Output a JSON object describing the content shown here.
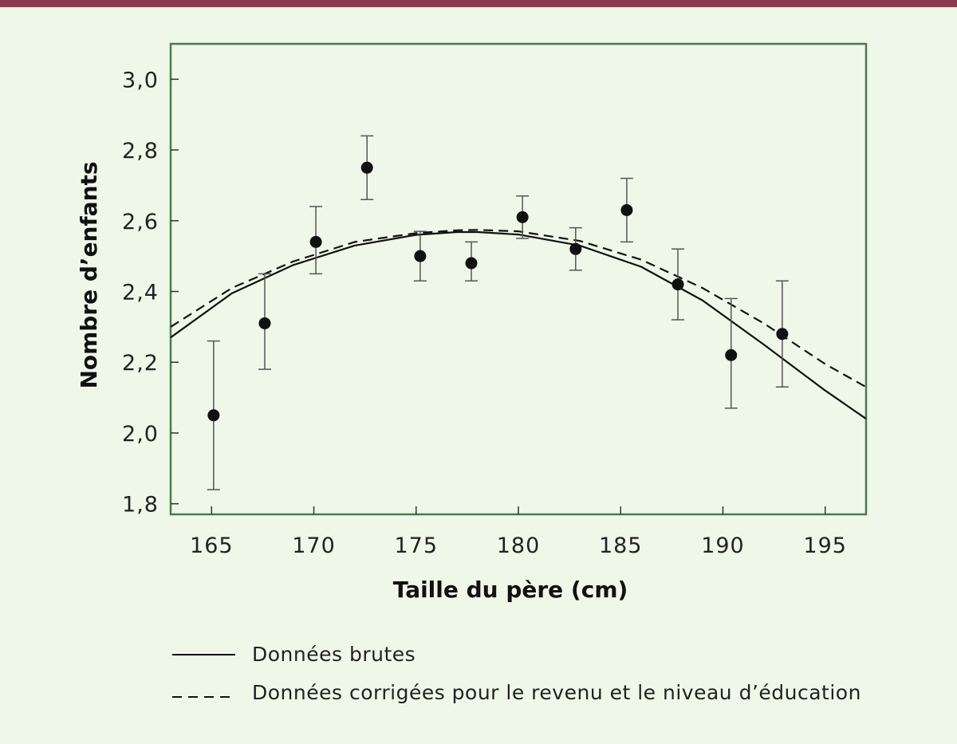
{
  "chart_data": {
    "type": "scatter",
    "xlabel": "Taille du père (cm)",
    "ylabel": "Nombre d’enfants",
    "xlim": [
      163,
      197
    ],
    "ylim": [
      1.77,
      3.1
    ],
    "xticks": [
      165,
      170,
      175,
      180,
      185,
      190,
      195
    ],
    "xtick_labels": [
      "165",
      "170",
      "175",
      "180",
      "185",
      "190",
      "195"
    ],
    "yticks": [
      1.8,
      2.0,
      2.2,
      2.4,
      2.6,
      2.8,
      3.0
    ],
    "ytick_labels": [
      "1,8",
      "2,0",
      "2,2",
      "2,4",
      "2,6",
      "2,8",
      "3,0"
    ],
    "grid": false,
    "colors": {
      "background": "#eff7e9",
      "plot_border": "#4b7a4b",
      "top_bar": "#8a3b4d",
      "marks": "#111111"
    },
    "points": [
      {
        "x": 165.1,
        "y": 2.05,
        "low": 1.84,
        "high": 2.26
      },
      {
        "x": 167.6,
        "y": 2.31,
        "low": 2.18,
        "high": 2.45
      },
      {
        "x": 170.1,
        "y": 2.54,
        "low": 2.45,
        "high": 2.64
      },
      {
        "x": 172.6,
        "y": 2.75,
        "low": 2.66,
        "high": 2.84
      },
      {
        "x": 175.2,
        "y": 2.5,
        "low": 2.43,
        "high": 2.57
      },
      {
        "x": 177.7,
        "y": 2.48,
        "low": 2.43,
        "high": 2.54
      },
      {
        "x": 180.2,
        "y": 2.61,
        "low": 2.55,
        "high": 2.67
      },
      {
        "x": 182.8,
        "y": 2.52,
        "low": 2.46,
        "high": 2.58
      },
      {
        "x": 185.3,
        "y": 2.63,
        "low": 2.54,
        "high": 2.72
      },
      {
        "x": 187.8,
        "y": 2.42,
        "low": 2.32,
        "high": 2.52
      },
      {
        "x": 190.4,
        "y": 2.22,
        "low": 2.07,
        "high": 2.38
      },
      {
        "x": 192.9,
        "y": 2.28,
        "low": 2.13,
        "high": 2.43
      }
    ],
    "series": [
      {
        "name": "Données brutes",
        "style": "solid",
        "x": [
          163,
          166,
          169,
          172,
          175,
          177,
          178,
          180,
          183,
          186,
          189,
          192,
          195,
          197
        ],
        "y": [
          2.27,
          2.395,
          2.475,
          2.53,
          2.56,
          2.568,
          2.568,
          2.561,
          2.53,
          2.47,
          2.375,
          2.25,
          2.12,
          2.04
        ]
      },
      {
        "name": "Données corrigées pour le revenu et le niveau d’éducation",
        "style": "dashed",
        "x": [
          163,
          166,
          169,
          172,
          175,
          177,
          178,
          180,
          183,
          186,
          189,
          192,
          195,
          197
        ],
        "y": [
          2.3,
          2.41,
          2.485,
          2.54,
          2.565,
          2.573,
          2.574,
          2.57,
          2.543,
          2.49,
          2.41,
          2.31,
          2.195,
          2.13
        ]
      }
    ],
    "legend": [
      {
        "label": "Données brutes",
        "style": "solid"
      },
      {
        "label": "Données corrigées pour le revenu et le niveau d’éducation",
        "style": "dashed"
      }
    ],
    "legend_placement": "bottom-left, below the plot"
  }
}
